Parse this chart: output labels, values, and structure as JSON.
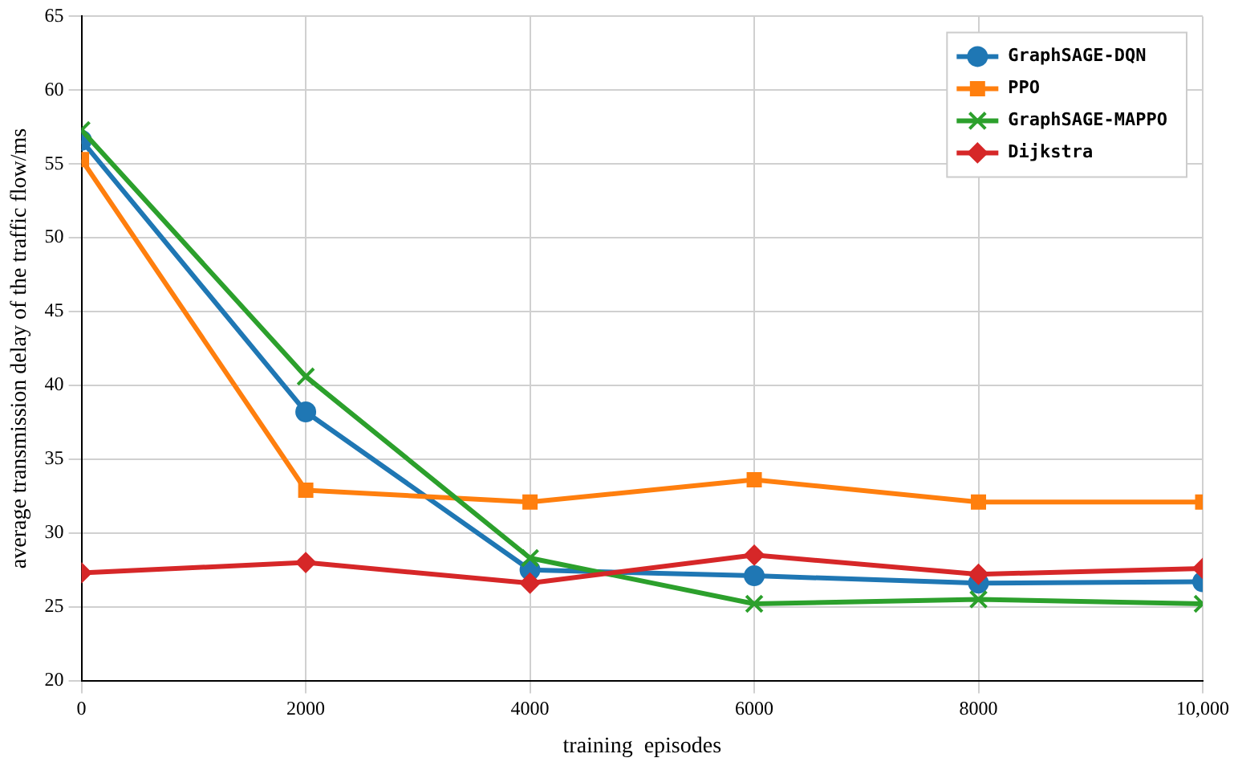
{
  "chart_data": {
    "type": "line",
    "xlabel": "training  episodes",
    "ylabel": "average transmission delay of the traffic flow/ms",
    "x": [
      0,
      2000,
      4000,
      6000,
      8000,
      10000
    ],
    "series": [
      {
        "name": "GraphSAGE-DQN",
        "color": "#1f77b4",
        "marker": "circle",
        "values": [
          56.6,
          38.2,
          27.5,
          27.1,
          26.6,
          26.7
        ]
      },
      {
        "name": "PPO",
        "color": "#ff7f0e",
        "marker": "square",
        "values": [
          55.3,
          32.9,
          32.1,
          33.6,
          32.1,
          32.1
        ]
      },
      {
        "name": "GraphSAGE-MAPPO",
        "color": "#2ca02c",
        "marker": "cross",
        "values": [
          57.3,
          40.6,
          28.3,
          25.2,
          25.5,
          25.2
        ]
      },
      {
        "name": "Dijkstra",
        "color": "#d62728",
        "marker": "diamond",
        "values": [
          27.3,
          28.0,
          26.6,
          28.5,
          27.2,
          27.6
        ]
      }
    ],
    "xlim": [
      0,
      10000
    ],
    "xticks": [
      0,
      2000,
      4000,
      6000,
      8000,
      {
        "value": 10000,
        "label": "10,000"
      }
    ],
    "ylim": [
      20,
      65
    ],
    "yticks": [
      20,
      25,
      30,
      35,
      40,
      45,
      50,
      55,
      60,
      65
    ],
    "grid": true,
    "legend": "top right"
  }
}
